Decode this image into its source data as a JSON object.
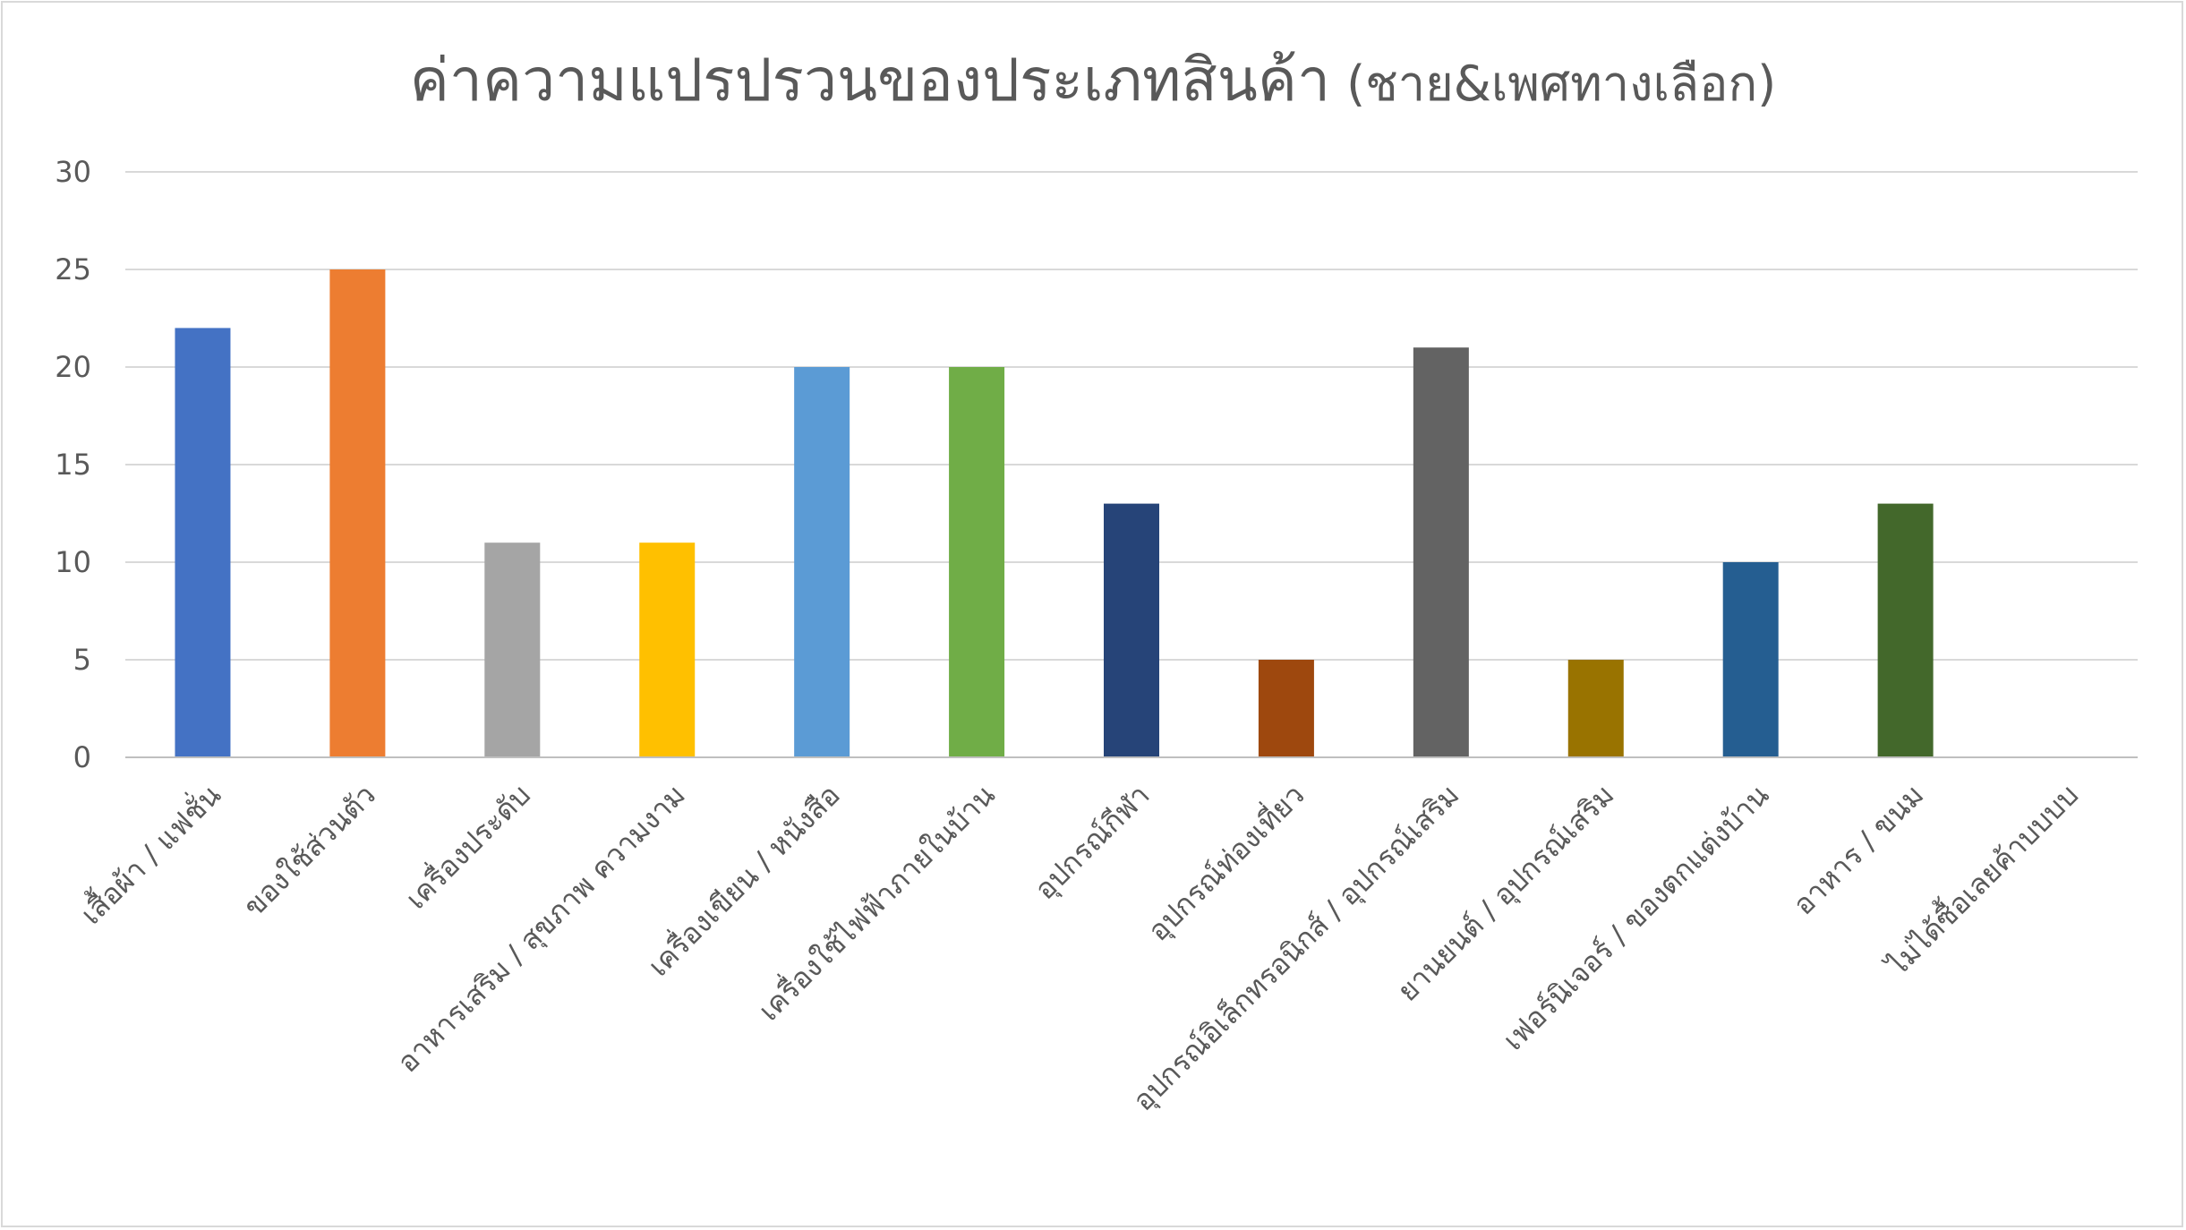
{
  "chart_data": {
    "type": "bar",
    "title": "ค่าความแปรปรวนของประเภทสินค้า",
    "subtitle": "(ชาย&เพศทางเลือก)",
    "xlabel": "",
    "ylabel": "",
    "ylim": [
      0,
      30
    ],
    "yticks": [
      0,
      5,
      10,
      15,
      20,
      25,
      30
    ],
    "grid": true,
    "legend": "none",
    "categories": [
      "เสื้อผ้า / แฟชั่น",
      "ของใช้ส่วนตัว",
      "เครื่องประดับ",
      "อาหารเสริม / สุขภาพ ความงาม",
      "เครื่องเขียน / หนังสือ",
      "เครื่องใช้ไฟฟ้าภายในบ้าน",
      "อุปกรณ์กีฬา",
      "อุปกรณ์ท่องเที่ยว",
      "อุปกรณ์อิเล็กทรอนิกส์ / อุปกรณ์เสริม",
      "ยานยนต์ / อุปกรณ์เสริม",
      "เฟอร์นิเจอร์ / ของตกแต่งบ้าน",
      "อาหาร / ขนม",
      "ไม่ได้ซื้อเลยค้าบบบบ"
    ],
    "values": [
      22,
      25,
      11,
      11,
      20,
      20,
      13,
      5,
      21,
      5,
      10,
      13,
      0
    ],
    "colors": [
      "#4472C4",
      "#ED7D31",
      "#A5A5A5",
      "#FFC000",
      "#5B9BD5",
      "#70AD47",
      "#264478",
      "#9E480E",
      "#636363",
      "#997300",
      "#255E91",
      "#43682B",
      "#698ED0"
    ]
  }
}
